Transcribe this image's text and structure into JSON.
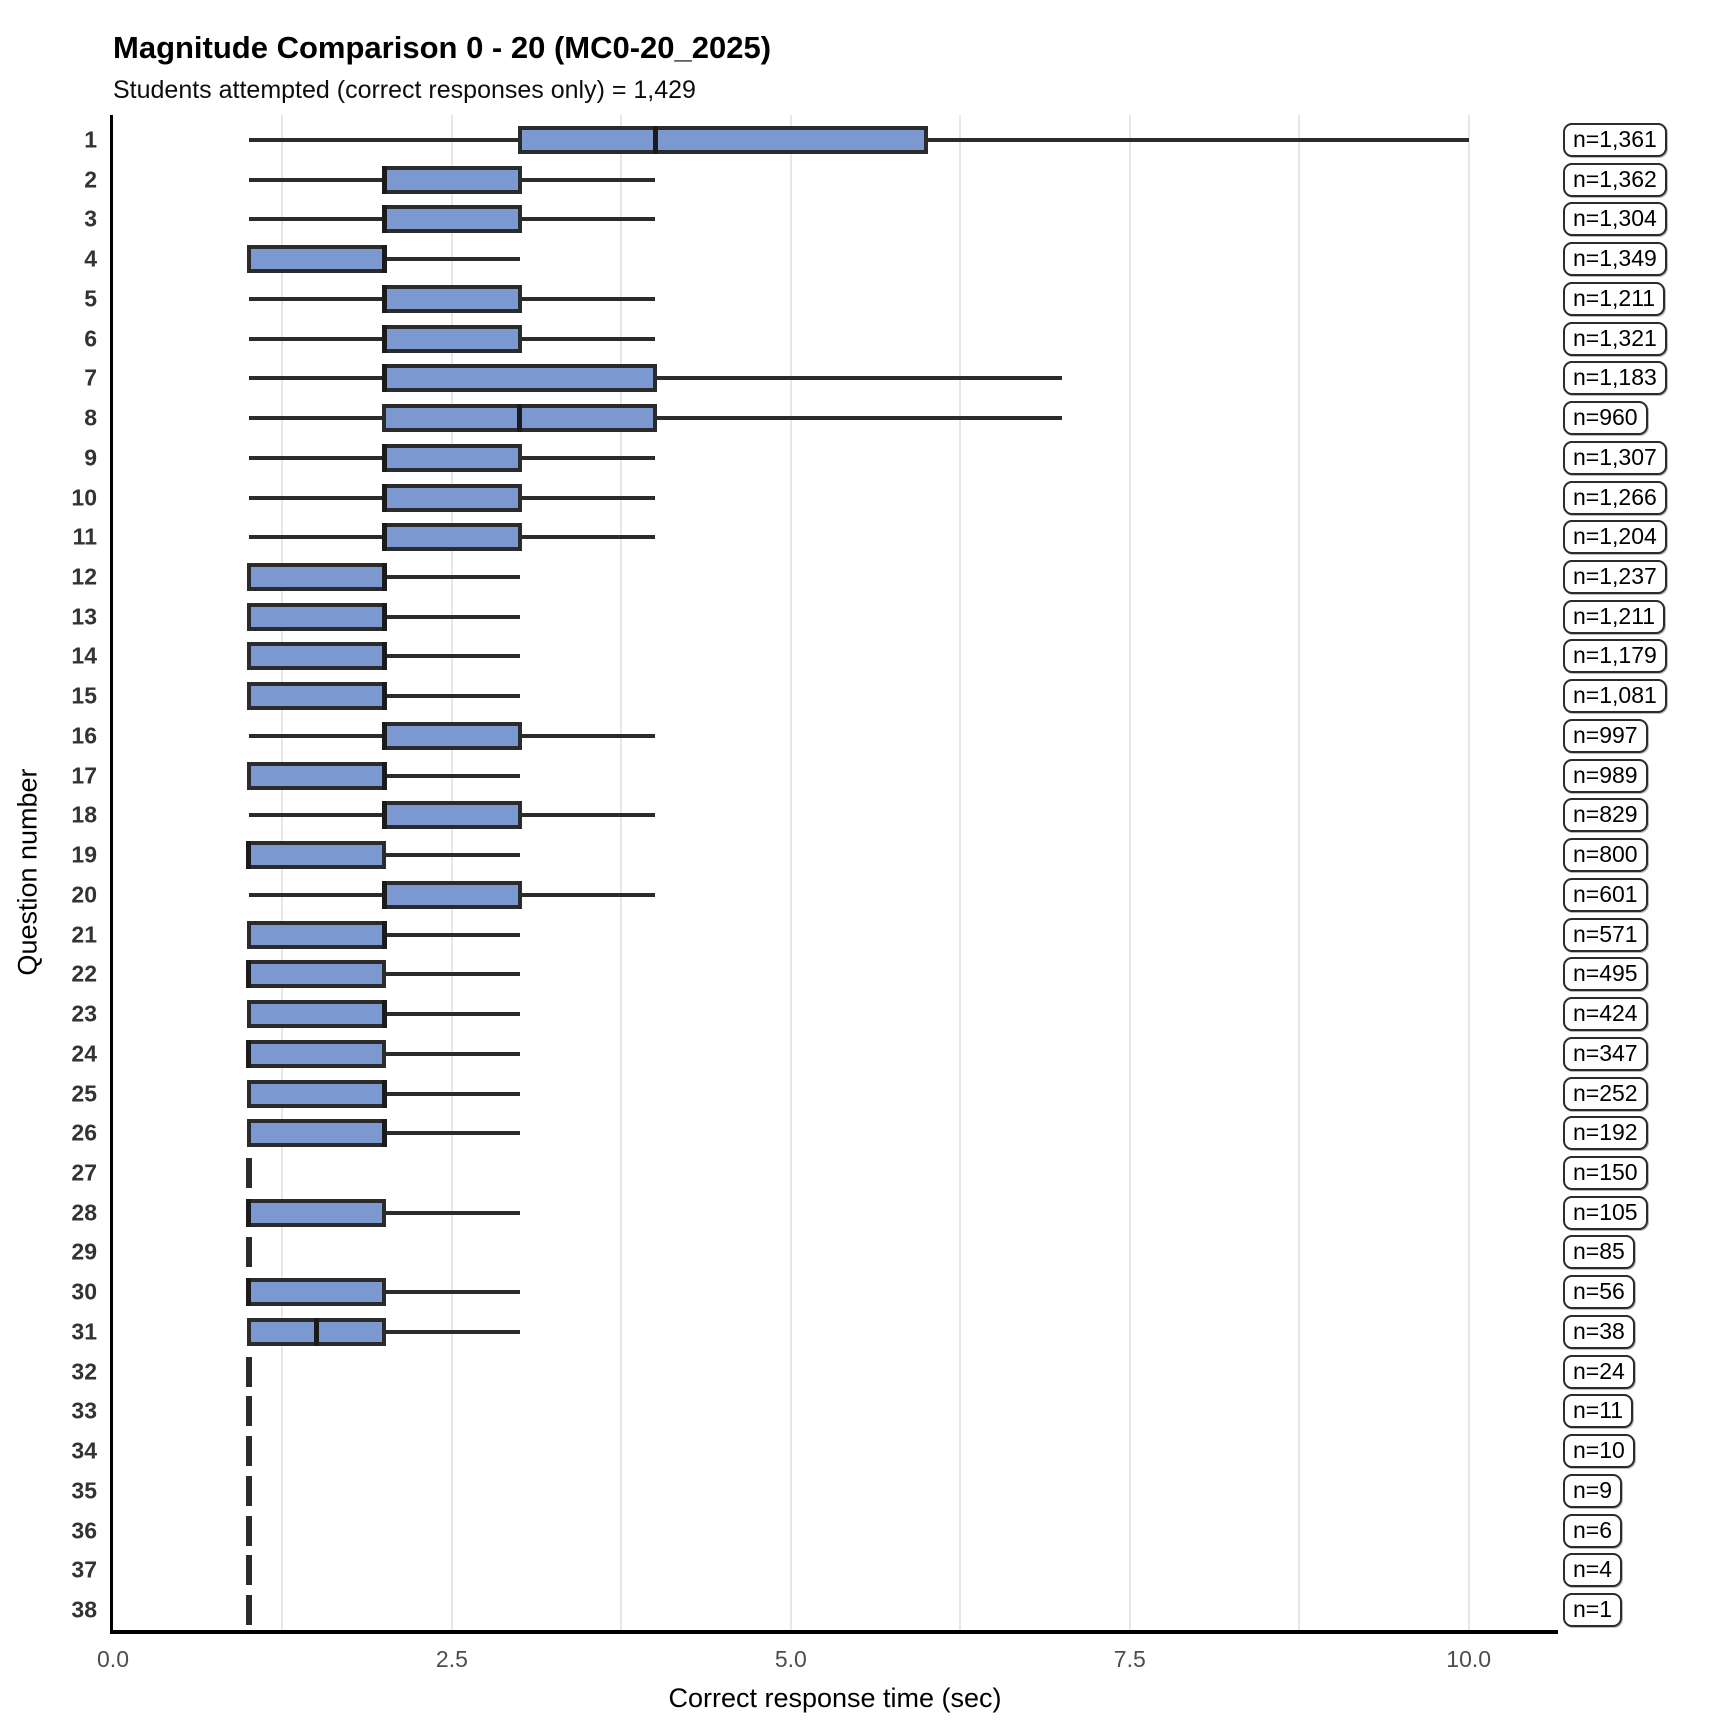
{
  "chart_data": {
    "type": "boxplot",
    "orientation": "horizontal",
    "title": "Magnitude Comparison 0 - 20 (MC0-20_2025)",
    "subtitle": "Students attempted (correct responses only) = 1,429",
    "xlabel": "Correct response time (sec)",
    "ylabel": "Question number",
    "xlim": [
      0,
      10.65
    ],
    "grid_step": 1.25,
    "grid_on": true,
    "xticks": [
      {
        "value": 0,
        "label": "0.0"
      },
      {
        "value": 2.5,
        "label": "2.5"
      },
      {
        "value": 5,
        "label": "5.0"
      },
      {
        "value": 7.5,
        "label": "7.5"
      },
      {
        "value": 10,
        "label": "10.0"
      }
    ],
    "colors": {
      "box_fill": "#7b98d0",
      "box_border": "#2b2b2b",
      "median": "#1b1b1b",
      "grid": "#e7e7e7",
      "axis": "#000000"
    },
    "rows": [
      {
        "q": "1",
        "n_label": "n=1,361",
        "min": 1,
        "q1": 3,
        "median": 4,
        "q3": 6,
        "max": 10
      },
      {
        "q": "2",
        "n_label": "n=1,362",
        "min": 1,
        "q1": 2,
        "median": 2,
        "q3": 3,
        "max": 4
      },
      {
        "q": "3",
        "n_label": "n=1,304",
        "min": 1,
        "q1": 2,
        "median": 2,
        "q3": 3,
        "max": 4
      },
      {
        "q": "4",
        "n_label": "n=1,349",
        "min": 1,
        "q1": 1,
        "median": 2,
        "q3": 2,
        "max": 3
      },
      {
        "q": "5",
        "n_label": "n=1,211",
        "min": 1,
        "q1": 2,
        "median": 2,
        "q3": 3,
        "max": 4
      },
      {
        "q": "6",
        "n_label": "n=1,321",
        "min": 1,
        "q1": 2,
        "median": 2,
        "q3": 3,
        "max": 4
      },
      {
        "q": "7",
        "n_label": "n=1,183",
        "min": 1,
        "q1": 2,
        "median": 2,
        "q3": 4,
        "max": 7
      },
      {
        "q": "8",
        "n_label": "n=960",
        "min": 1,
        "q1": 2,
        "median": 3,
        "q3": 4,
        "max": 7
      },
      {
        "q": "9",
        "n_label": "n=1,307",
        "min": 1,
        "q1": 2,
        "median": 2,
        "q3": 3,
        "max": 4
      },
      {
        "q": "10",
        "n_label": "n=1,266",
        "min": 1,
        "q1": 2,
        "median": 2,
        "q3": 3,
        "max": 4
      },
      {
        "q": "11",
        "n_label": "n=1,204",
        "min": 1,
        "q1": 2,
        "median": 2,
        "q3": 3,
        "max": 4
      },
      {
        "q": "12",
        "n_label": "n=1,237",
        "min": 1,
        "q1": 1,
        "median": 2,
        "q3": 2,
        "max": 3
      },
      {
        "q": "13",
        "n_label": "n=1,211",
        "min": 1,
        "q1": 1,
        "median": 2,
        "q3": 2,
        "max": 3
      },
      {
        "q": "14",
        "n_label": "n=1,179",
        "min": 1,
        "q1": 1,
        "median": 2,
        "q3": 2,
        "max": 3
      },
      {
        "q": "15",
        "n_label": "n=1,081",
        "min": 1,
        "q1": 1,
        "median": 2,
        "q3": 2,
        "max": 3
      },
      {
        "q": "16",
        "n_label": "n=997",
        "min": 1,
        "q1": 2,
        "median": 2,
        "q3": 3,
        "max": 4
      },
      {
        "q": "17",
        "n_label": "n=989",
        "min": 1,
        "q1": 1,
        "median": 2,
        "q3": 2,
        "max": 3
      },
      {
        "q": "18",
        "n_label": "n=829",
        "min": 1,
        "q1": 2,
        "median": 2,
        "q3": 3,
        "max": 4
      },
      {
        "q": "19",
        "n_label": "n=800",
        "min": 1,
        "q1": 1,
        "median": 1,
        "q3": 2,
        "max": 3
      },
      {
        "q": "20",
        "n_label": "n=601",
        "min": 1,
        "q1": 2,
        "median": 2,
        "q3": 3,
        "max": 4
      },
      {
        "q": "21",
        "n_label": "n=571",
        "min": 1,
        "q1": 1,
        "median": 2,
        "q3": 2,
        "max": 3
      },
      {
        "q": "22",
        "n_label": "n=495",
        "min": 1,
        "q1": 1,
        "median": 1,
        "q3": 2,
        "max": 3
      },
      {
        "q": "23",
        "n_label": "n=424",
        "min": 1,
        "q1": 1,
        "median": 2,
        "q3": 2,
        "max": 3
      },
      {
        "q": "24",
        "n_label": "n=347",
        "min": 1,
        "q1": 1,
        "median": 1,
        "q3": 2,
        "max": 3
      },
      {
        "q": "25",
        "n_label": "n=252",
        "min": 1,
        "q1": 1,
        "median": 2,
        "q3": 2,
        "max": 3
      },
      {
        "q": "26",
        "n_label": "n=192",
        "min": 1,
        "q1": 1,
        "median": 2,
        "q3": 2,
        "max": 3
      },
      {
        "q": "27",
        "n_label": "n=150",
        "min": 1,
        "q1": 1,
        "median": 1,
        "q3": 1,
        "max": 1
      },
      {
        "q": "28",
        "n_label": "n=105",
        "min": 1,
        "q1": 1,
        "median": 1,
        "q3": 2,
        "max": 3
      },
      {
        "q": "29",
        "n_label": "n=85",
        "min": 1,
        "q1": 1,
        "median": 1,
        "q3": 1,
        "max": 1
      },
      {
        "q": "30",
        "n_label": "n=56",
        "min": 1,
        "q1": 1,
        "median": 1,
        "q3": 2,
        "max": 3
      },
      {
        "q": "31",
        "n_label": "n=38",
        "min": 1,
        "q1": 1,
        "median": 1.5,
        "q3": 2,
        "max": 3
      },
      {
        "q": "32",
        "n_label": "n=24",
        "min": 1,
        "q1": 1,
        "median": 1,
        "q3": 1,
        "max": 1
      },
      {
        "q": "33",
        "n_label": "n=11",
        "min": 1,
        "q1": 1,
        "median": 1,
        "q3": 1,
        "max": 1
      },
      {
        "q": "34",
        "n_label": "n=10",
        "min": 1,
        "q1": 1,
        "median": 1,
        "q3": 1,
        "max": 1
      },
      {
        "q": "35",
        "n_label": "n=9",
        "min": 1,
        "q1": 1,
        "median": 1,
        "q3": 1,
        "max": 1
      },
      {
        "q": "36",
        "n_label": "n=6",
        "min": 1,
        "q1": 1,
        "median": 1,
        "q3": 1,
        "max": 1
      },
      {
        "q": "37",
        "n_label": "n=4",
        "min": 1,
        "q1": 1,
        "median": 1,
        "q3": 1,
        "max": 1
      },
      {
        "q": "38",
        "n_label": "n=1",
        "min": 1,
        "q1": 1,
        "median": 1,
        "q3": 1,
        "max": 1
      }
    ]
  }
}
